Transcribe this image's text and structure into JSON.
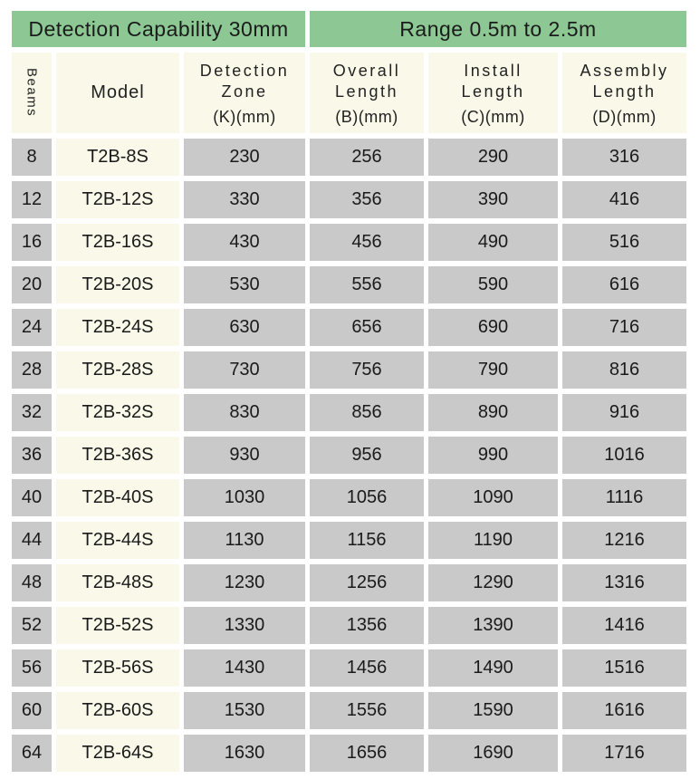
{
  "banners": {
    "left": "Detection Capability 30mm",
    "right": "Range 0.5m to 2.5m"
  },
  "columns": [
    {
      "id": "beams",
      "label": "Beams",
      "lines": [
        "Beams"
      ],
      "sub": ""
    },
    {
      "id": "model",
      "label": "Model",
      "lines": [
        "Model"
      ],
      "sub": ""
    },
    {
      "id": "zone",
      "label": "Detection Zone",
      "lines": [
        "Detection",
        "Zone"
      ],
      "sub": "(K)(mm)"
    },
    {
      "id": "overall",
      "label": "Overall Length",
      "lines": [
        "Overall",
        "Length"
      ],
      "sub": "(B)(mm)"
    },
    {
      "id": "install",
      "label": "Install Length",
      "lines": [
        "Install",
        "Length"
      ],
      "sub": "(C)(mm)"
    },
    {
      "id": "assembly",
      "label": "Assembly Length",
      "lines": [
        "Assembly",
        "Length"
      ],
      "sub": "(D)(mm)"
    }
  ],
  "rows": [
    {
      "beams": "8",
      "model": "T2B-8S",
      "zone": "230",
      "overall": "256",
      "install": "290",
      "assembly": "316"
    },
    {
      "beams": "12",
      "model": "T2B-12S",
      "zone": "330",
      "overall": "356",
      "install": "390",
      "assembly": "416"
    },
    {
      "beams": "16",
      "model": "T2B-16S",
      "zone": "430",
      "overall": "456",
      "install": "490",
      "assembly": "516"
    },
    {
      "beams": "20",
      "model": "T2B-20S",
      "zone": "530",
      "overall": "556",
      "install": "590",
      "assembly": "616"
    },
    {
      "beams": "24",
      "model": "T2B-24S",
      "zone": "630",
      "overall": "656",
      "install": "690",
      "assembly": "716"
    },
    {
      "beams": "28",
      "model": "T2B-28S",
      "zone": "730",
      "overall": "756",
      "install": "790",
      "assembly": "816"
    },
    {
      "beams": "32",
      "model": "T2B-32S",
      "zone": "830",
      "overall": "856",
      "install": "890",
      "assembly": "916"
    },
    {
      "beams": "36",
      "model": "T2B-36S",
      "zone": "930",
      "overall": "956",
      "install": "990",
      "assembly": "1016"
    },
    {
      "beams": "40",
      "model": "T2B-40S",
      "zone": "1030",
      "overall": "1056",
      "install": "1090",
      "assembly": "1116"
    },
    {
      "beams": "44",
      "model": "T2B-44S",
      "zone": "1130",
      "overall": "1156",
      "install": "1190",
      "assembly": "1216"
    },
    {
      "beams": "48",
      "model": "T2B-48S",
      "zone": "1230",
      "overall": "1256",
      "install": "1290",
      "assembly": "1316"
    },
    {
      "beams": "52",
      "model": "T2B-52S",
      "zone": "1330",
      "overall": "1356",
      "install": "1390",
      "assembly": "1416"
    },
    {
      "beams": "56",
      "model": "T2B-56S",
      "zone": "1430",
      "overall": "1456",
      "install": "1490",
      "assembly": "1516"
    },
    {
      "beams": "60",
      "model": "T2B-60S",
      "zone": "1530",
      "overall": "1556",
      "install": "1590",
      "assembly": "1616"
    },
    {
      "beams": "64",
      "model": "T2B-64S",
      "zone": "1630",
      "overall": "1656",
      "install": "1690",
      "assembly": "1716"
    }
  ],
  "colors": {
    "banner_green": "#8cc794",
    "header_cream": "#faf8e8",
    "cell_gray": "#c9c9c9",
    "background": "#ffffff",
    "text": "#1d1d1d"
  }
}
